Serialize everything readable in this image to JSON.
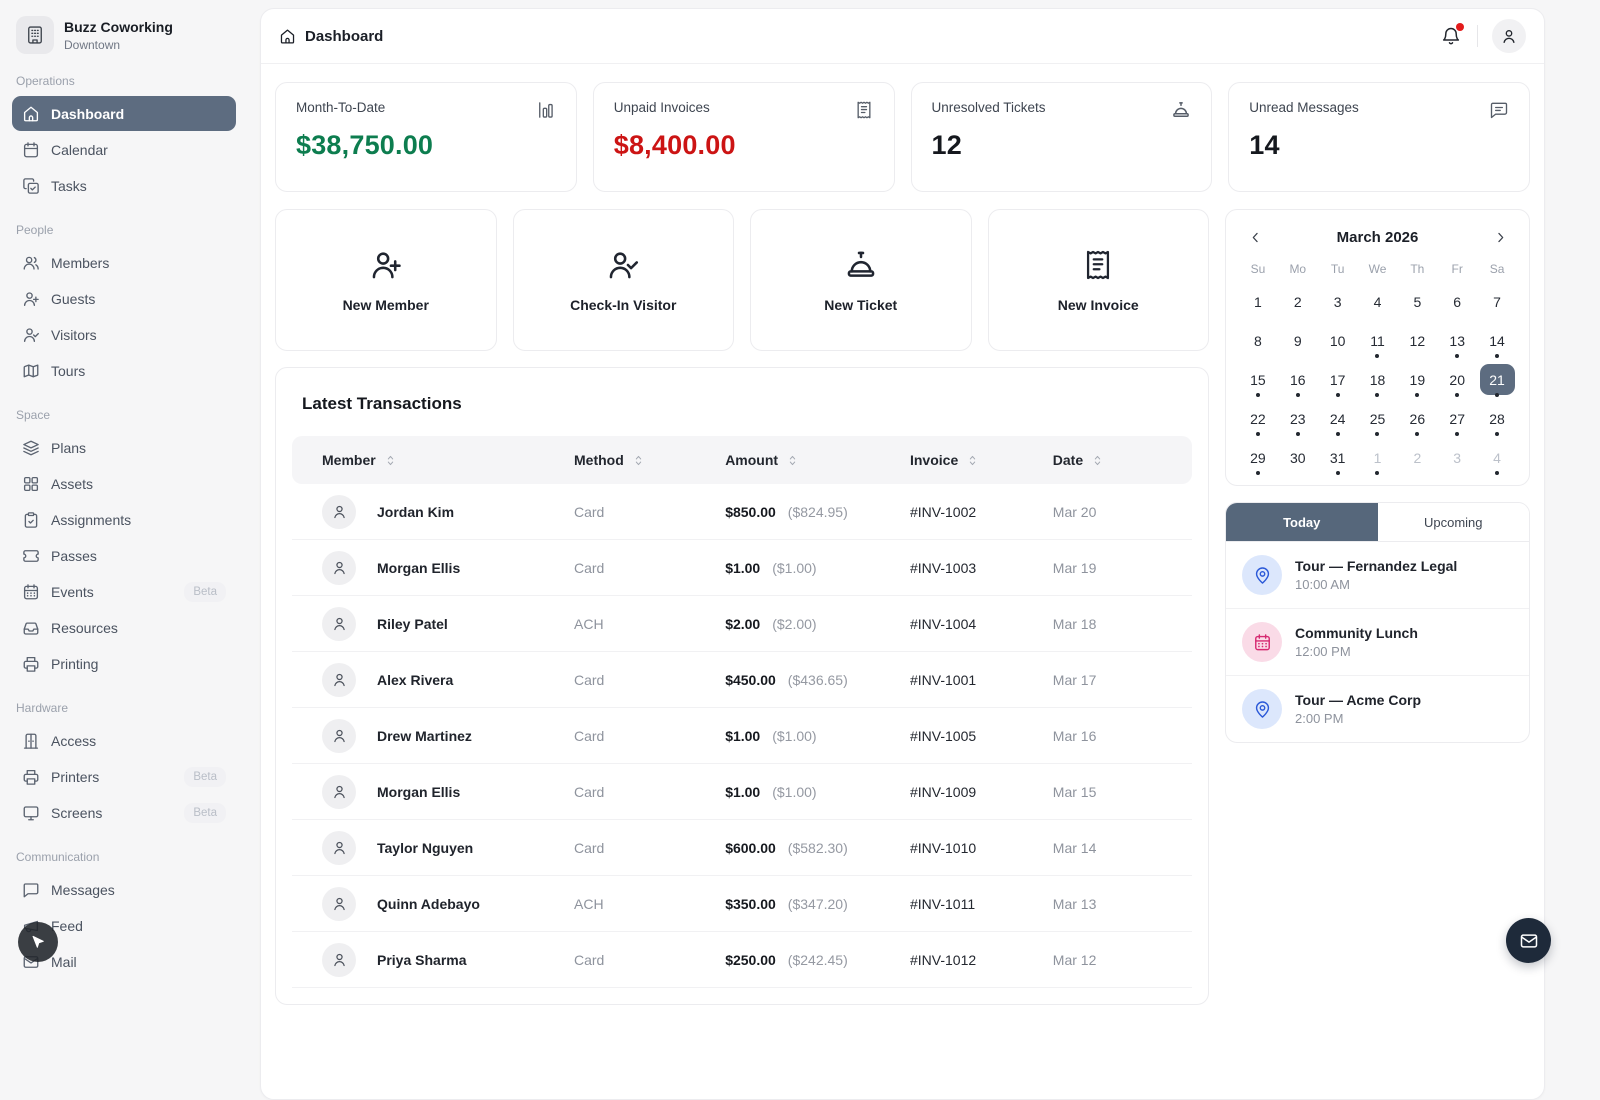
{
  "colors": {
    "accent": "#5d6c80",
    "tab_active": "#56677b",
    "positive_green": "#0d7d4f",
    "negative_red": "#cc1414",
    "alert_dot": "#e31b1b",
    "fab_bg": "#1e2a3a",
    "event_blue_bg": "#dce7fc",
    "event_blue_fg": "#2b59d8",
    "event_pink_bg": "#fadbe7",
    "event_pink_fg": "#d62a71"
  },
  "org": {
    "name": "Buzz Coworking",
    "location": "Downtown",
    "icon": "building"
  },
  "sidebar": {
    "sections": [
      {
        "label": "Operations",
        "items": [
          {
            "label": "Dashboard",
            "icon": "home",
            "active": true
          },
          {
            "label": "Calendar",
            "icon": "calendar"
          },
          {
            "label": "Tasks",
            "icon": "tasks"
          }
        ]
      },
      {
        "label": "People",
        "items": [
          {
            "label": "Members",
            "icon": "users"
          },
          {
            "label": "Guests",
            "icon": "user-plus"
          },
          {
            "label": "Visitors",
            "icon": "user-check"
          },
          {
            "label": "Tours",
            "icon": "map"
          }
        ]
      },
      {
        "label": "Space",
        "items": [
          {
            "label": "Plans",
            "icon": "layers"
          },
          {
            "label": "Assets",
            "icon": "grid"
          },
          {
            "label": "Assignments",
            "icon": "clipboard-check"
          },
          {
            "label": "Passes",
            "icon": "ticket"
          },
          {
            "label": "Events",
            "icon": "calendar-days",
            "badge": "Beta"
          },
          {
            "label": "Resources",
            "icon": "inbox"
          },
          {
            "label": "Printing",
            "icon": "printer"
          }
        ]
      },
      {
        "label": "Hardware",
        "items": [
          {
            "label": "Access",
            "icon": "door"
          },
          {
            "label": "Printers",
            "icon": "printer",
            "badge": "Beta"
          },
          {
            "label": "Screens",
            "icon": "monitor",
            "badge": "Beta"
          }
        ]
      },
      {
        "label": "Communication",
        "items": [
          {
            "label": "Messages",
            "icon": "message"
          },
          {
            "label": "Feed",
            "icon": "megaphone"
          },
          {
            "label": "Mail",
            "icon": "mail"
          }
        ]
      }
    ]
  },
  "header": {
    "title": "Dashboard"
  },
  "stats": [
    {
      "label": "Month-To-Date",
      "value": "$38,750.00",
      "icon": "bar-chart",
      "color": "#0d7d4f"
    },
    {
      "label": "Unpaid Invoices",
      "value": "$8,400.00",
      "icon": "receipt",
      "color": "#cc1414"
    },
    {
      "label": "Unresolved Tickets",
      "value": "12",
      "icon": "bell-concierge",
      "color": "#15181e"
    },
    {
      "label": "Unread Messages",
      "value": "14",
      "icon": "message-lines",
      "color": "#15181e"
    }
  ],
  "quick_actions": [
    {
      "label": "New Member",
      "icon": "user-plus"
    },
    {
      "label": "Check-In Visitor",
      "icon": "user-check"
    },
    {
      "label": "New Ticket",
      "icon": "bell-concierge"
    },
    {
      "label": "New Invoice",
      "icon": "receipt"
    }
  ],
  "transactions": {
    "title": "Latest Transactions",
    "columns": [
      "Member",
      "Method",
      "Amount",
      "Invoice",
      "Date"
    ],
    "rows": [
      {
        "member": "Jordan Kim",
        "method": "Card",
        "amount": "$850.00",
        "net": "($824.95)",
        "invoice": "#INV-1002",
        "date": "Mar 20"
      },
      {
        "member": "Morgan Ellis",
        "method": "Card",
        "amount": "$1.00",
        "net": "($1.00)",
        "invoice": "#INV-1003",
        "date": "Mar 19"
      },
      {
        "member": "Riley Patel",
        "method": "ACH",
        "amount": "$2.00",
        "net": "($2.00)",
        "invoice": "#INV-1004",
        "date": "Mar 18"
      },
      {
        "member": "Alex Rivera",
        "method": "Card",
        "amount": "$450.00",
        "net": "($436.65)",
        "invoice": "#INV-1001",
        "date": "Mar 17"
      },
      {
        "member": "Drew Martinez",
        "method": "Card",
        "amount": "$1.00",
        "net": "($1.00)",
        "invoice": "#INV-1005",
        "date": "Mar 16"
      },
      {
        "member": "Morgan Ellis",
        "method": "Card",
        "amount": "$1.00",
        "net": "($1.00)",
        "invoice": "#INV-1009",
        "date": "Mar 15"
      },
      {
        "member": "Taylor Nguyen",
        "method": "Card",
        "amount": "$600.00",
        "net": "($582.30)",
        "invoice": "#INV-1010",
        "date": "Mar 14"
      },
      {
        "member": "Quinn Adebayo",
        "method": "ACH",
        "amount": "$350.00",
        "net": "($347.20)",
        "invoice": "#INV-1011",
        "date": "Mar 13"
      },
      {
        "member": "Priya Sharma",
        "method": "Card",
        "amount": "$250.00",
        "net": "($242.45)",
        "invoice": "#INV-1012",
        "date": "Mar 12"
      }
    ]
  },
  "calendar": {
    "month": "March 2026",
    "day_headers": [
      "Su",
      "Mo",
      "Tu",
      "We",
      "Th",
      "Fr",
      "Sa"
    ],
    "cells": [
      {
        "d": "1"
      },
      {
        "d": "2"
      },
      {
        "d": "3"
      },
      {
        "d": "4"
      },
      {
        "d": "5"
      },
      {
        "d": "6"
      },
      {
        "d": "7"
      },
      {
        "d": "8"
      },
      {
        "d": "9"
      },
      {
        "d": "10"
      },
      {
        "d": "11",
        "dot": true
      },
      {
        "d": "12"
      },
      {
        "d": "13",
        "dot": true
      },
      {
        "d": "14",
        "dot": true
      },
      {
        "d": "15",
        "dot": true
      },
      {
        "d": "16",
        "dot": true
      },
      {
        "d": "17",
        "dot": true
      },
      {
        "d": "18",
        "dot": true
      },
      {
        "d": "19",
        "dot": true
      },
      {
        "d": "20",
        "dot": true
      },
      {
        "d": "21",
        "dot": true,
        "selected": true
      },
      {
        "d": "22",
        "dot": true
      },
      {
        "d": "23",
        "dot": true
      },
      {
        "d": "24",
        "dot": true
      },
      {
        "d": "25",
        "dot": true
      },
      {
        "d": "26",
        "dot": true
      },
      {
        "d": "27",
        "dot": true
      },
      {
        "d": "28",
        "dot": true
      },
      {
        "d": "29",
        "dot": true
      },
      {
        "d": "30"
      },
      {
        "d": "31",
        "dot": true
      },
      {
        "d": "1",
        "muted": true,
        "dot": true
      },
      {
        "d": "2",
        "muted": true
      },
      {
        "d": "3",
        "muted": true
      },
      {
        "d": "4",
        "muted": true,
        "dot": true
      }
    ]
  },
  "agenda": {
    "tabs": [
      {
        "label": "Today",
        "active": true
      },
      {
        "label": "Upcoming"
      }
    ],
    "events": [
      {
        "title": "Tour — Fernandez Legal",
        "time": "10:00 AM",
        "icon": "map-pin",
        "icon_bg": "#dce7fc",
        "icon_fg": "#2b59d8"
      },
      {
        "title": "Community Lunch",
        "time": "12:00 PM",
        "icon": "calendar-days",
        "icon_bg": "#fadbe7",
        "icon_fg": "#d62a71"
      },
      {
        "title": "Tour — Acme Corp",
        "time": "2:00 PM",
        "icon": "map-pin",
        "icon_bg": "#dce7fc",
        "icon_fg": "#2b59d8"
      }
    ]
  }
}
